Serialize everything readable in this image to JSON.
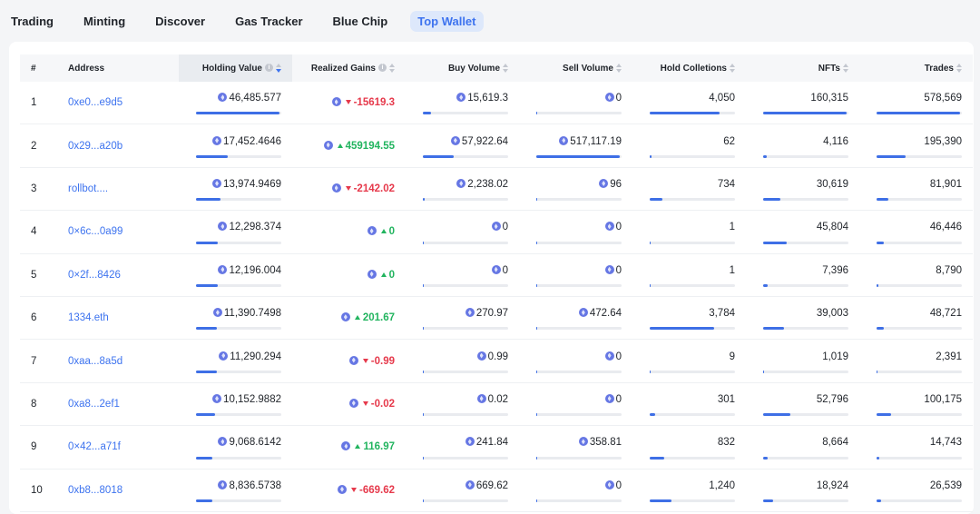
{
  "nav": {
    "tabs": [
      {
        "label": "Trading",
        "active": false
      },
      {
        "label": "Minting",
        "active": false
      },
      {
        "label": "Discover",
        "active": false
      },
      {
        "label": "Gas Tracker",
        "active": false
      },
      {
        "label": "Blue Chip",
        "active": false
      },
      {
        "label": "Top Wallet",
        "active": true
      }
    ]
  },
  "table": {
    "headers": {
      "rank": "#",
      "address": "Address",
      "holding_value": "Holding Value",
      "realized_gains": "Realized Gains",
      "buy_volume": "Buy Volume",
      "sell_volume": "Sell Volume",
      "hold_collections": "Hold Colletions",
      "nfts": "NFTs",
      "trades": "Trades"
    },
    "rows": [
      {
        "rank": "1",
        "address": "0xe0...e9d5",
        "holding": "46,485.577",
        "holding_fill": 0.98,
        "gain": "-15619.3",
        "gain_dir": "down",
        "buy": "15,619.3",
        "buy_fill": 0.1,
        "sell": "0",
        "sell_fill": 0.0,
        "collections": "4,050",
        "collections_fill": 0.82,
        "nfts": "160,315",
        "nfts_fill": 0.98,
        "trades": "578,569",
        "trades_fill": 0.98
      },
      {
        "rank": "2",
        "address": "0x29...a20b",
        "holding": "17,452.4646",
        "holding_fill": 0.37,
        "gain": "459194.55",
        "gain_dir": "up",
        "buy": "57,922.64",
        "buy_fill": 0.36,
        "sell": "517,117.19",
        "sell_fill": 0.98,
        "collections": "62",
        "collections_fill": 0.02,
        "nfts": "4,116",
        "nfts_fill": 0.04,
        "trades": "195,390",
        "trades_fill": 0.34
      },
      {
        "rank": "3",
        "address": "rollbot....",
        "holding": "13,974.9469",
        "holding_fill": 0.29,
        "gain": "-2142.02",
        "gain_dir": "down",
        "buy": "2,238.02",
        "buy_fill": 0.02,
        "sell": "96",
        "sell_fill": 0.0,
        "collections": "734",
        "collections_fill": 0.15,
        "nfts": "30,619",
        "nfts_fill": 0.2,
        "trades": "81,901",
        "trades_fill": 0.14
      },
      {
        "rank": "4",
        "address": "0×6c...0a99",
        "holding": "12,298.374",
        "holding_fill": 0.26,
        "gain": "0",
        "gain_dir": "up",
        "buy": "0",
        "buy_fill": 0.0,
        "sell": "0",
        "sell_fill": 0.0,
        "collections": "1",
        "collections_fill": 0.0,
        "nfts": "45,804",
        "nfts_fill": 0.28,
        "trades": "46,446",
        "trades_fill": 0.08
      },
      {
        "rank": "5",
        "address": "0×2f...8426",
        "holding": "12,196.004",
        "holding_fill": 0.26,
        "gain": "0",
        "gain_dir": "up",
        "buy": "0",
        "buy_fill": 0.0,
        "sell": "0",
        "sell_fill": 0.0,
        "collections": "1",
        "collections_fill": 0.0,
        "nfts": "7,396",
        "nfts_fill": 0.05,
        "trades": "8,790",
        "trades_fill": 0.02
      },
      {
        "rank": "6",
        "address": "1334.eth",
        "holding": "11,390.7498",
        "holding_fill": 0.24,
        "gain": "201.67",
        "gain_dir": "up",
        "buy": "270.97",
        "buy_fill": 0.0,
        "sell": "472.64",
        "sell_fill": 0.0,
        "collections": "3,784",
        "collections_fill": 0.76,
        "nfts": "39,003",
        "nfts_fill": 0.24,
        "trades": "48,721",
        "trades_fill": 0.08
      },
      {
        "rank": "7",
        "address": "0xaa...8a5d",
        "holding": "11,290.294",
        "holding_fill": 0.24,
        "gain": "-0.99",
        "gain_dir": "down",
        "buy": "0.99",
        "buy_fill": 0.0,
        "sell": "0",
        "sell_fill": 0.0,
        "collections": "9",
        "collections_fill": 0.0,
        "nfts": "1,019",
        "nfts_fill": 0.01,
        "trades": "2,391",
        "trades_fill": 0.01
      },
      {
        "rank": "8",
        "address": "0xa8...2ef1",
        "holding": "10,152.9882",
        "holding_fill": 0.22,
        "gain": "-0.02",
        "gain_dir": "down",
        "buy": "0.02",
        "buy_fill": 0.0,
        "sell": "0",
        "sell_fill": 0.0,
        "collections": "301",
        "collections_fill": 0.06,
        "nfts": "52,796",
        "nfts_fill": 0.32,
        "trades": "100,175",
        "trades_fill": 0.17
      },
      {
        "rank": "9",
        "address": "0×42...a71f",
        "holding": "9,068.6142",
        "holding_fill": 0.19,
        "gain": "116.97",
        "gain_dir": "up",
        "buy": "241.84",
        "buy_fill": 0.0,
        "sell": "358.81",
        "sell_fill": 0.0,
        "collections": "832",
        "collections_fill": 0.17,
        "nfts": "8,664",
        "nfts_fill": 0.05,
        "trades": "14,743",
        "trades_fill": 0.03
      },
      {
        "rank": "10",
        "address": "0xb8...8018",
        "holding": "8,836.5738",
        "holding_fill": 0.19,
        "gain": "-669.62",
        "gain_dir": "down",
        "buy": "669.62",
        "buy_fill": 0.0,
        "sell": "0",
        "sell_fill": 0.0,
        "collections": "1,240",
        "collections_fill": 0.25,
        "nfts": "18,924",
        "nfts_fill": 0.12,
        "trades": "26,539",
        "trades_fill": 0.05
      }
    ]
  },
  "colors": {
    "accent": "#3d73ef",
    "positive": "#22b45f",
    "negative": "#e6394b",
    "eth": "#6677e4"
  },
  "icons": {
    "currency": "eth-icon",
    "info": "info-icon",
    "sort": "sort-icon"
  }
}
